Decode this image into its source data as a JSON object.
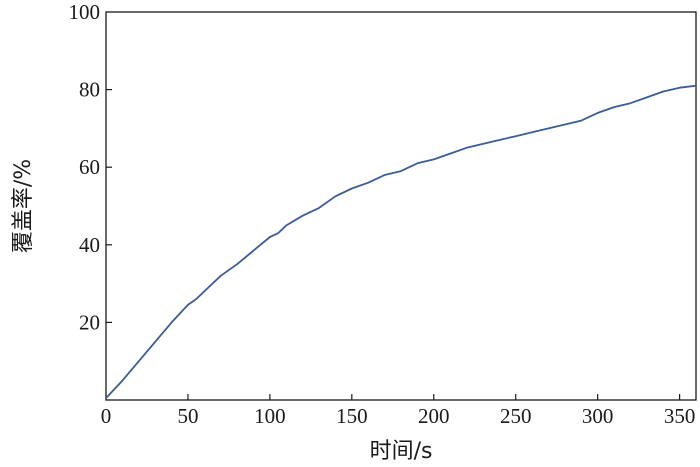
{
  "chart_data": {
    "type": "line",
    "title": "",
    "xlabel": "时间/s",
    "ylabel": "覆盖率/%",
    "xlim": [
      0,
      360
    ],
    "ylim": [
      0,
      100
    ],
    "x_ticks": [
      0,
      50,
      100,
      150,
      200,
      250,
      300,
      350
    ],
    "y_ticks": [
      20,
      40,
      60,
      80,
      100
    ],
    "grid": false,
    "legend": "none",
    "series": [
      {
        "color": "#3b5c9a",
        "x": [
          0,
          10,
          20,
          30,
          40,
          50,
          55,
          60,
          70,
          80,
          90,
          100,
          105,
          110,
          120,
          130,
          140,
          150,
          160,
          170,
          180,
          190,
          200,
          210,
          220,
          230,
          240,
          250,
          260,
          270,
          280,
          290,
          300,
          310,
          320,
          330,
          340,
          350,
          360
        ],
        "y": [
          0.5,
          5,
          10,
          15,
          20,
          24.5,
          26,
          28,
          32,
          35,
          38.5,
          42,
          43,
          45,
          47.5,
          49.5,
          52.5,
          54.5,
          56,
          58,
          59,
          61,
          62,
          63.5,
          65,
          66,
          67,
          68,
          69,
          70,
          71,
          72,
          74,
          75.5,
          76.5,
          78,
          79.5,
          80.5,
          81
        ]
      }
    ]
  }
}
